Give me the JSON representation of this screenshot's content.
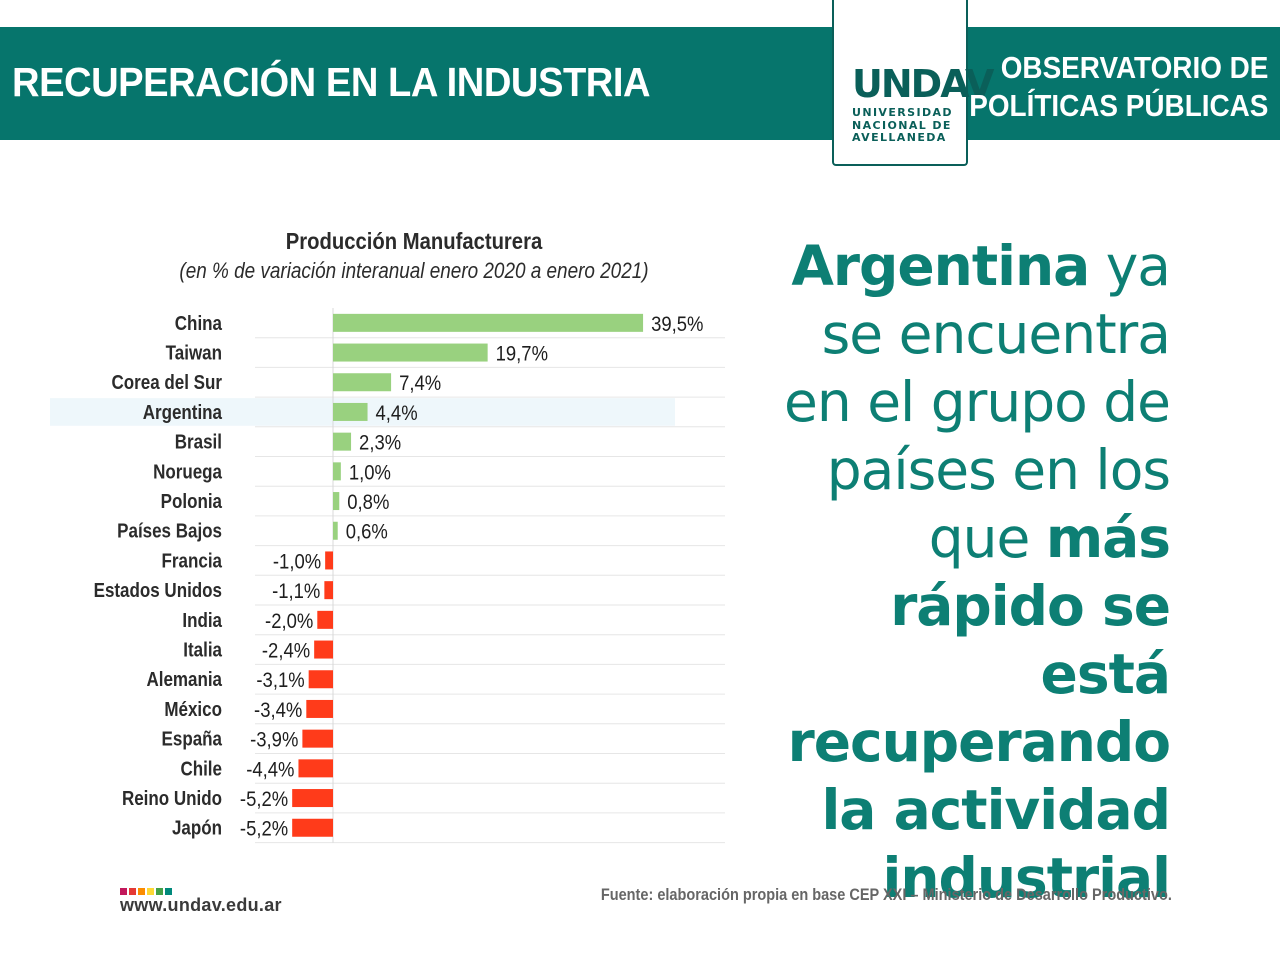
{
  "header": {
    "title": "RECUPERACIÓN EN LA INDUSTRIA",
    "observatory": "OBSERVATORIO DE\nPOLÍTICAS PÚBLICAS",
    "logo_mark": "UNDAV",
    "logo_sub": "UNIVERSIDAD\nNACIONAL DE\nAVELLANEDA"
  },
  "statement": {
    "part1_bold": "Argentina",
    "part2": " ya se encuentra en el grupo de países en los que ",
    "part3_bold": "más rápido se está recuperando la actividad industrial"
  },
  "footer": {
    "url": "www.undav.edu.ar",
    "source": "Fuente: elaboración propia en base CEP XXI – Ministerio de Desarrollo Productivo.",
    "dot_colors": [
      "#c2185b",
      "#e53935",
      "#fb8c00",
      "#fdd835",
      "#43a047",
      "#00897b"
    ]
  },
  "colors": {
    "brand": "#06756c",
    "positive": "#99d17f",
    "negative": "#ff3b1a",
    "highlight": "#eef7fb"
  },
  "chart_data": {
    "type": "bar",
    "orientation": "horizontal",
    "title": "Producción Manufacturera",
    "subtitle": "(en % de variación interanual enero 2020 a enero 2021)",
    "highlight": "Argentina",
    "categories": [
      "China",
      "Taiwan",
      "Corea del Sur",
      "Argentina",
      "Brasil",
      "Noruega",
      "Polonia",
      "Países Bajos",
      "Francia",
      "Estados Unidos",
      "India",
      "Italia",
      "Alemania",
      "México",
      "España",
      "Chile",
      "Reino Unido",
      "Japón"
    ],
    "values": [
      39.5,
      19.7,
      7.4,
      4.4,
      2.3,
      1.0,
      0.8,
      0.6,
      -1.0,
      -1.1,
      -2.0,
      -2.4,
      -3.1,
      -3.4,
      -3.9,
      -4.4,
      -5.2,
      -5.2
    ],
    "labels": [
      "39,5%",
      "19,7%",
      "7,4%",
      "4,4%",
      "2,3%",
      "1,0%",
      "0,8%",
      "0,6%",
      "-1,0%",
      "-1,1%",
      "-2,0%",
      "-2,4%",
      "-3,1%",
      "-3,4%",
      "-3,9%",
      "-4,4%",
      "-5,2%",
      "-5,2%"
    ]
  }
}
